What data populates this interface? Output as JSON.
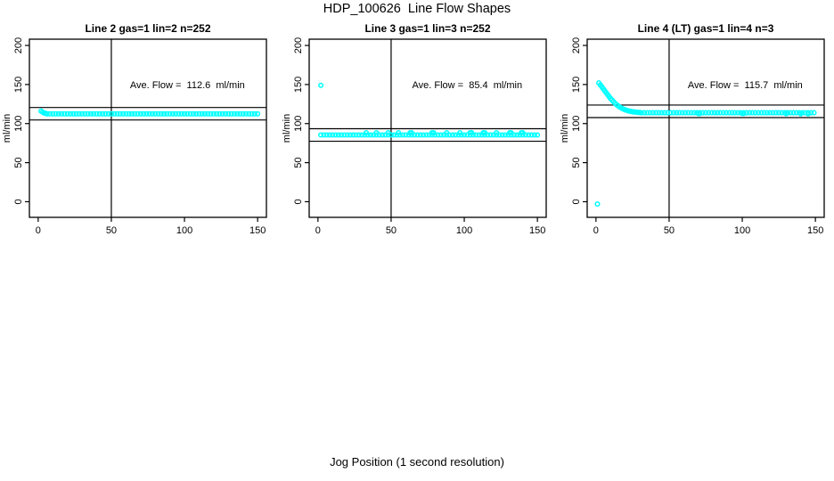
{
  "figure": {
    "title": "HDP_100626  Line Flow Shapes",
    "xlabel": "Jog Position (1 second resolution)",
    "background_color": "#ffffff",
    "point_color": "#00ffff",
    "axis_color": "#000000"
  },
  "chart_data": [
    {
      "type": "scatter",
      "title": "Line 2 gas=1 lin=2 n=252",
      "ylabel": "ml/min",
      "annotation": "Ave. Flow =  112.6  ml/min",
      "ave_flow_ml_min": 112.6,
      "xlim": [
        -6,
        156
      ],
      "ylim": [
        -20,
        208
      ],
      "x_ticks": [
        0,
        50,
        100,
        150
      ],
      "y_ticks": [
        0,
        50,
        100,
        150,
        200
      ],
      "vline_x": 50,
      "hlines": [
        120.6,
        104.6
      ],
      "grid": false,
      "points": [
        [
          2,
          116
        ],
        [
          3,
          114.6
        ],
        [
          4,
          113.6
        ],
        [
          5,
          113.1
        ]
      ],
      "bands": [
        {
          "x_from": 6,
          "x_to": 150,
          "step": 2,
          "y": 112.5
        }
      ]
    },
    {
      "type": "scatter",
      "title": "Line 3 gas=1 lin=3 n=252",
      "ylabel": "ml/min",
      "annotation": "Ave. Flow =  85.4  ml/min",
      "ave_flow_ml_min": 85.4,
      "xlim": [
        -6,
        156
      ],
      "ylim": [
        -20,
        208
      ],
      "x_ticks": [
        0,
        50,
        100,
        150
      ],
      "y_ticks": [
        0,
        50,
        100,
        150,
        200
      ],
      "vline_x": 50,
      "hlines": [
        93.4,
        77.4
      ],
      "grid": false,
      "points": [
        [
          2,
          149
        ],
        [
          33,
          88.3
        ],
        [
          40,
          88.3
        ],
        [
          48,
          88.3
        ],
        [
          55,
          88.3
        ],
        [
          63,
          88.3
        ],
        [
          64,
          88.3
        ],
        [
          78,
          88.3
        ],
        [
          79,
          88.3
        ],
        [
          88,
          88.3
        ],
        [
          97,
          88.3
        ],
        [
          104,
          88.3
        ],
        [
          105,
          88.3
        ],
        [
          113,
          88.3
        ],
        [
          114,
          88.3
        ],
        [
          122,
          88.3
        ],
        [
          131,
          88.3
        ],
        [
          132,
          88.3
        ],
        [
          139,
          88.3
        ],
        [
          140,
          88.3
        ]
      ],
      "bands": [
        {
          "x_from": 2,
          "x_to": 150,
          "step": 2,
          "y": 85.5
        }
      ]
    },
    {
      "type": "scatter",
      "title": "Line 4 (LT) gas=1 lin=4 n=3",
      "ylabel": "ml/min",
      "annotation": "Ave. Flow =  115.7  ml/min",
      "ave_flow_ml_min": 115.7,
      "xlim": [
        -6,
        156
      ],
      "ylim": [
        -20,
        208
      ],
      "x_ticks": [
        0,
        50,
        100,
        150
      ],
      "y_ticks": [
        0,
        50,
        100,
        150,
        200
      ],
      "vline_x": 50,
      "hlines": [
        123.7,
        107.7
      ],
      "grid": false,
      "points": [
        [
          1,
          -3
        ],
        [
          2,
          152
        ],
        [
          3,
          149.5
        ],
        [
          4,
          147
        ],
        [
          5,
          144.5
        ],
        [
          6,
          142
        ],
        [
          7,
          139.5
        ],
        [
          8,
          137
        ],
        [
          9,
          134.5
        ],
        [
          10,
          132
        ],
        [
          11,
          130
        ],
        [
          12,
          128
        ],
        [
          13,
          126
        ],
        [
          14,
          124.3
        ],
        [
          15,
          122.8
        ],
        [
          16,
          121.5
        ],
        [
          17,
          120.3
        ],
        [
          18,
          119.3
        ],
        [
          19,
          118.4
        ],
        [
          20,
          117.6
        ],
        [
          21,
          117
        ],
        [
          22,
          116.4
        ],
        [
          23,
          115.9
        ],
        [
          24,
          115.5
        ],
        [
          25,
          115.2
        ],
        [
          26,
          114.9
        ],
        [
          27,
          114.7
        ],
        [
          28,
          114.5
        ],
        [
          29,
          114.3
        ],
        [
          30,
          114.2
        ],
        [
          70,
          112.8
        ],
        [
          71,
          112.8
        ],
        [
          100,
          112.9
        ],
        [
          101,
          112.9
        ],
        [
          130,
          112.7
        ],
        [
          140,
          112.6
        ],
        [
          145,
          112.6
        ]
      ],
      "bands": [
        {
          "x_from": 31,
          "x_to": 150,
          "step": 2,
          "y": 113.8
        }
      ]
    }
  ]
}
